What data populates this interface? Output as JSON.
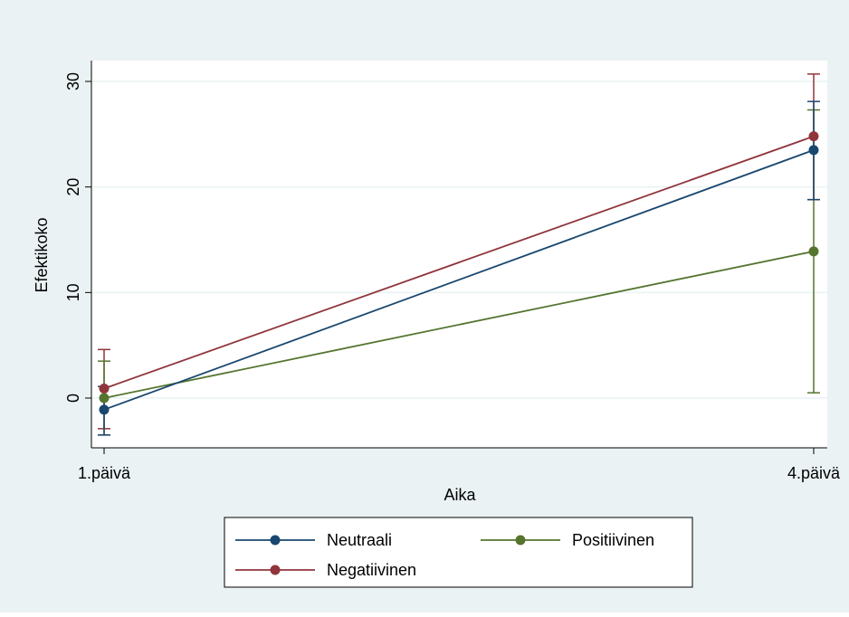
{
  "chart_data": {
    "type": "line",
    "xlabel": "Aika",
    "ylabel": "Efektikoko",
    "categories": [
      "1.päivä",
      "4.päivä"
    ],
    "ylim": [
      -4.5,
      32
    ],
    "yticks": [
      0,
      10,
      20,
      30
    ],
    "grid": true,
    "legend_position": "bottom",
    "series": [
      {
        "name": "Neutraali",
        "color": "#1a476f",
        "values": [
          -1.1,
          23.5
        ],
        "ci_low": [
          -3.5,
          18.8
        ],
        "ci_high": [
          1.1,
          28.1
        ]
      },
      {
        "name": "Negatiivinen",
        "color": "#90353b",
        "values": [
          0.9,
          24.8
        ],
        "ci_low": [
          -2.9,
          18.8
        ],
        "ci_high": [
          4.6,
          30.7
        ]
      },
      {
        "name": "Positiivinen",
        "color": "#55752f",
        "values": [
          0.0,
          13.9
        ],
        "ci_low": [
          -3.5,
          0.5
        ],
        "ci_high": [
          3.5,
          27.3
        ]
      }
    ]
  }
}
